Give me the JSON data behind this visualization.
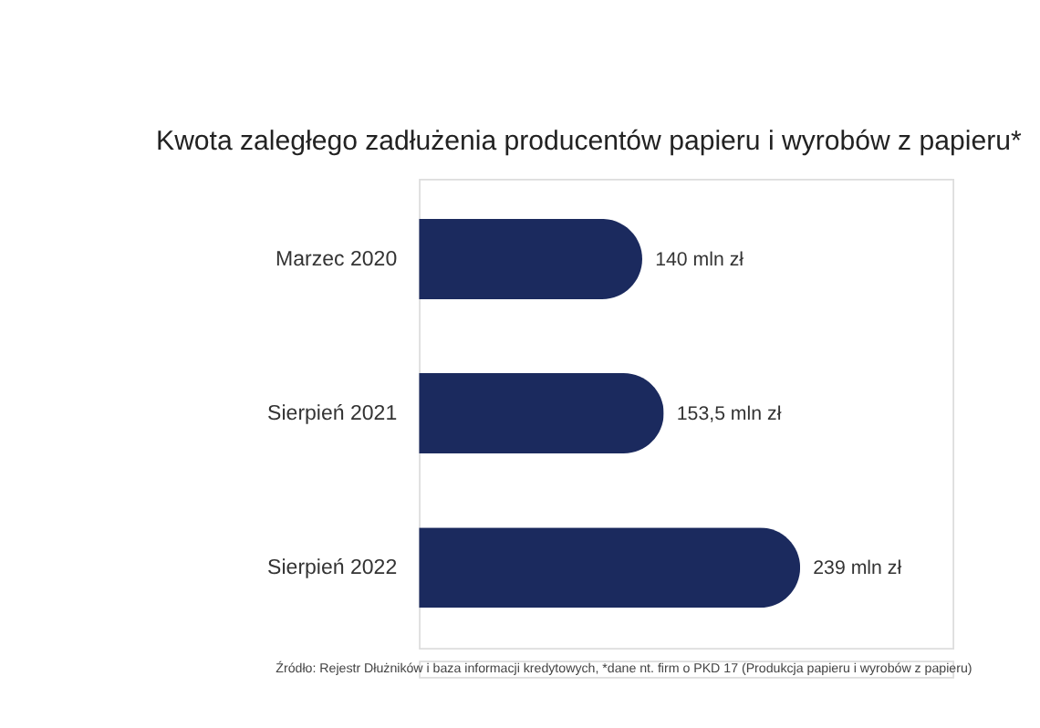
{
  "chart_data": {
    "type": "bar",
    "orientation": "horizontal",
    "title": "Kwota zaległego zadłużenia producentów papieru i wyrobów z papieru*",
    "categories": [
      "Marzec 2020",
      "Sierpień 2021",
      "Sierpień 2022"
    ],
    "values": [
      140,
      153.5,
      239
    ],
    "value_labels": [
      "140 mln zł",
      "153,5 mln zł",
      "239 mln zł"
    ],
    "color": "#1b2a5e",
    "annotations": [
      "Źródło: Rejestr Dłużników i baza informacji kredytowych, *dane nt. firm o PKD 17 (Produkcja papieru i wyrobów z papieru)"
    ]
  }
}
